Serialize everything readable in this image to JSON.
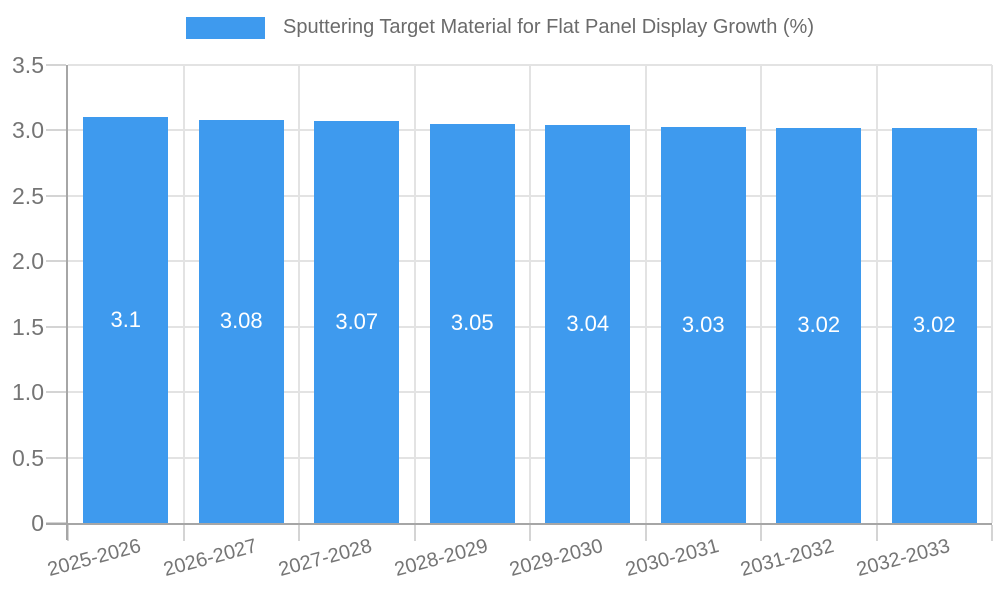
{
  "legend": {
    "label": "Sputtering Target Material for Flat Panel Display Growth (%)"
  },
  "colors": {
    "bar": "#3E9AEE",
    "axis_line": "#a6a6a6",
    "grid_line": "#e3e3e3",
    "tick_line": "#d4d4d4",
    "label_text": "#757575",
    "title_text": "#6b6b6b",
    "value_text": "#ffffff",
    "background": "#ffffff"
  },
  "chart_data": {
    "type": "bar",
    "title": "Sputtering Target Material for Flat Panel Display Growth (%)",
    "categories": [
      "2025-2026",
      "2026-2027",
      "2027-2028",
      "2028-2029",
      "2029-2030",
      "2030-2031",
      "2031-2032",
      "2032-2033"
    ],
    "values": [
      3.1,
      3.08,
      3.07,
      3.05,
      3.04,
      3.03,
      3.02,
      3.02
    ],
    "value_labels": [
      "3.1",
      "3.08",
      "3.07",
      "3.05",
      "3.04",
      "3.03",
      "3.02",
      "3.02"
    ],
    "xlabel": "",
    "ylabel": "",
    "ylim": [
      0,
      3.5
    ],
    "ytick_step": 0.5,
    "ytick_labels": [
      "0",
      "0.5",
      "1.0",
      "1.5",
      "2.0",
      "2.5",
      "3.0",
      "3.5"
    ],
    "grid": true,
    "legend_position": "top",
    "x_label_rotation_deg": -15,
    "bar_width_ratio": 0.74,
    "value_label_position": "center"
  }
}
